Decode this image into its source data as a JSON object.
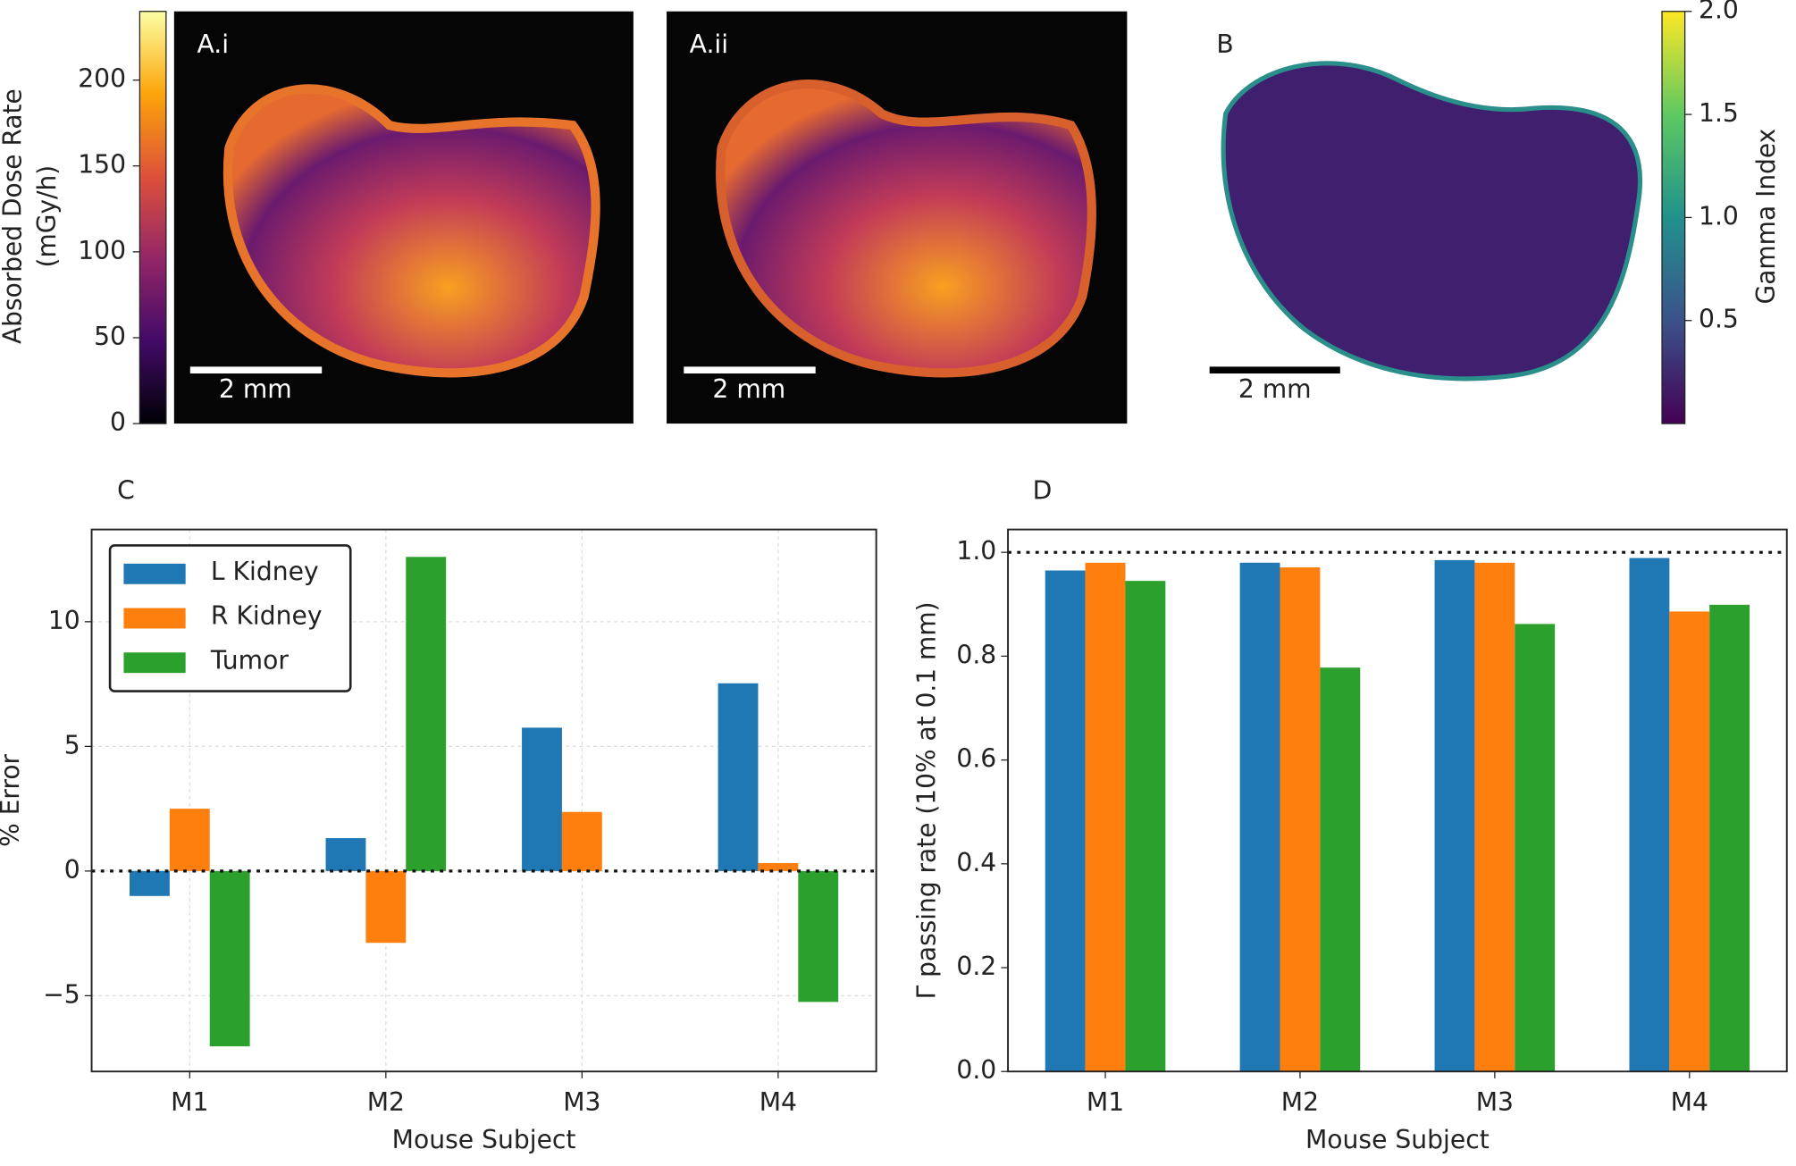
{
  "chart_data": [
    {
      "type": "image",
      "panel_labels": [
        "A.i",
        "A.ii"
      ],
      "scale_bar": "2 mm",
      "colorbar": {
        "label": [
          "Absorbed Dose Rate",
          "(mGy/h)"
        ],
        "colormap": "inferno",
        "side": "left",
        "ylim": [
          0,
          240
        ],
        "yticks": [
          0,
          50,
          100,
          150,
          200
        ]
      }
    },
    {
      "type": "image",
      "panel_labels": [
        "B"
      ],
      "scale_bar": "2 mm",
      "colorbar": {
        "label": [
          "Gamma Index"
        ],
        "colormap": "viridis",
        "side": "right",
        "ylim": [
          0,
          2
        ],
        "yticks": [
          0.5,
          {
            "value": 1,
            "label": "1.0"
          },
          1.5,
          {
            "value": 2,
            "label": "2.0"
          }
        ]
      }
    },
    {
      "type": "bar",
      "title": "C",
      "xlabel": "Mouse Subject",
      "ylabel": "% Error",
      "categories": [
        "M1",
        "M2",
        "M3",
        "M4"
      ],
      "series": [
        {
          "name": "L Kidney",
          "color": "#1f77b4",
          "values": [
            -1.0,
            1.32,
            5.75,
            7.53
          ]
        },
        {
          "name": "R Kidney",
          "color": "#ff7f0e",
          "values": [
            2.5,
            -2.88,
            2.37,
            0.32
          ]
        },
        {
          "name": "Tumor",
          "color": "#2ca02c",
          "values": [
            -7.03,
            12.6,
            0,
            -5.25
          ]
        }
      ],
      "ylim": [
        -8.04,
        13.7
      ],
      "yticks": [
        {
          "value": -5,
          "label": "−5"
        },
        0,
        5,
        10
      ],
      "grid": true,
      "reference_line": 0,
      "legend": "upper left"
    },
    {
      "type": "bar",
      "title": "D",
      "xlabel": "Mouse Subject",
      "ylabel": "Γ passing rate (10% at 0.1 mm)",
      "categories": [
        "M1",
        "M2",
        "M3",
        "M4"
      ],
      "series": [
        {
          "color": "#1f77b4",
          "values": [
            0.965,
            0.98,
            0.985,
            0.989
          ]
        },
        {
          "color": "#ff7f0e",
          "values": [
            0.98,
            0.971,
            0.98,
            0.886
          ]
        },
        {
          "color": "#2ca02c",
          "values": [
            0.945,
            0.778,
            0.862,
            0.899
          ]
        }
      ],
      "ylim": [
        0,
        1.044
      ],
      "yticks": [
        {
          "value": 0,
          "label": "0.0"
        },
        0.2,
        0.4,
        0.6,
        0.8,
        {
          "value": 1,
          "label": "1.0"
        }
      ],
      "grid": false,
      "reference_line": 1
    }
  ]
}
